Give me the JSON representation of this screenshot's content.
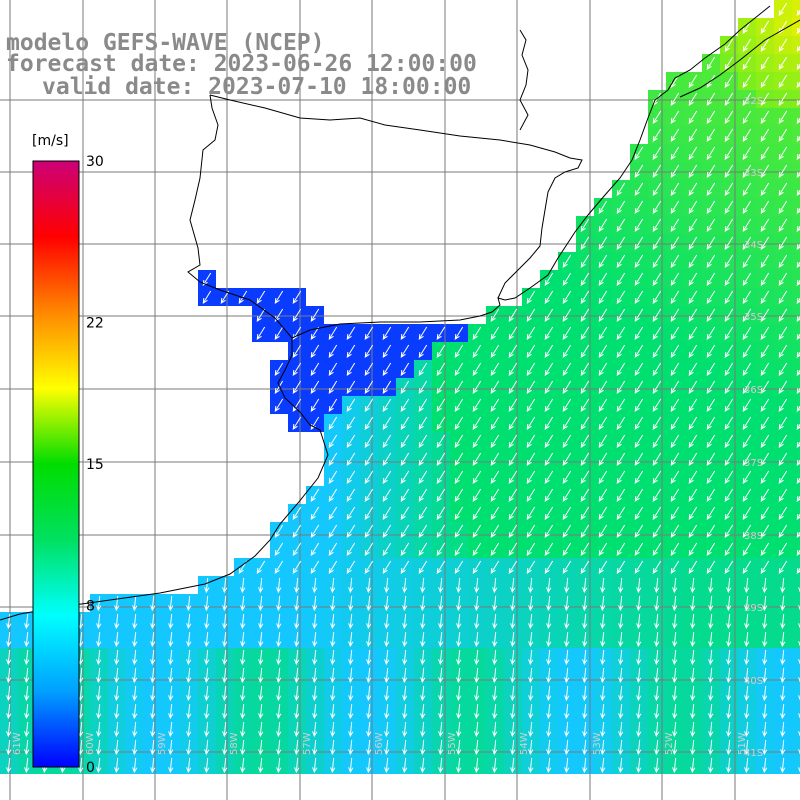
{
  "title": {
    "line1": "modelo GEFS-WAVE (NCEP)",
    "line2": "forecast date: 2023-06-26 12:00:00",
    "line3": "valid date: 2023-07-10 18:00:00"
  },
  "colorbar": {
    "unit": "[m/s]",
    "ticks": [
      "30",
      "22",
      "15",
      "8",
      "0"
    ],
    "tick_values": [
      30,
      22,
      15,
      8,
      0
    ],
    "range": [
      0,
      30
    ],
    "colors": [
      "#0000ff",
      "#00a0ff",
      "#00ffff",
      "#00e060",
      "#00dd00",
      "#ffff00",
      "#ff8800",
      "#ff0000",
      "#cc0077"
    ]
  },
  "grid": {
    "lat_labels": [
      "32S",
      "33S",
      "34S",
      "35S",
      "36S",
      "37S",
      "38S",
      "39S",
      "40S",
      "41S"
    ],
    "lon_labels": [
      "61W",
      "60W",
      "59W",
      "58W",
      "57W",
      "56W",
      "55W",
      "54W",
      "53W",
      "52W",
      "51W"
    ],
    "lon_range": [
      -61.2,
      -50.0
    ],
    "lat_range": [
      -41.3,
      -30.9
    ]
  },
  "field": {
    "variable": "wind",
    "vector_direction": "from northeast",
    "colors": {
      "estuary": "#0a3cff",
      "shelf": "#14c8ff",
      "offshore": "#00e070",
      "north": "#70ee20",
      "ne_max": "#e8f000"
    }
  }
}
